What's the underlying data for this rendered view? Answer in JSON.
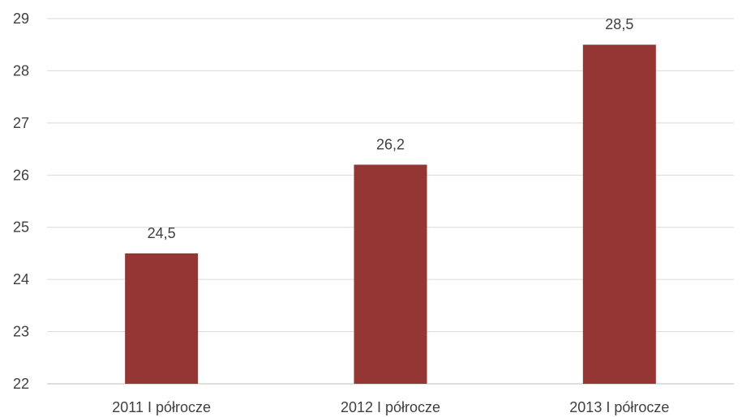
{
  "chart_data": {
    "type": "bar",
    "categories": [
      "2011 I półrocze",
      "2012 I półrocze",
      "2013 I półrocze"
    ],
    "values": [
      24.5,
      26.2,
      28.5
    ],
    "value_labels": [
      "24,5",
      "26,2",
      "28,5"
    ],
    "ylim": [
      22,
      29
    ],
    "yticks": [
      22,
      23,
      24,
      25,
      26,
      27,
      28,
      29
    ],
    "title": "",
    "xlabel": "",
    "ylabel": "",
    "grid": true,
    "legend": "none",
    "bar_color": "#943634"
  }
}
